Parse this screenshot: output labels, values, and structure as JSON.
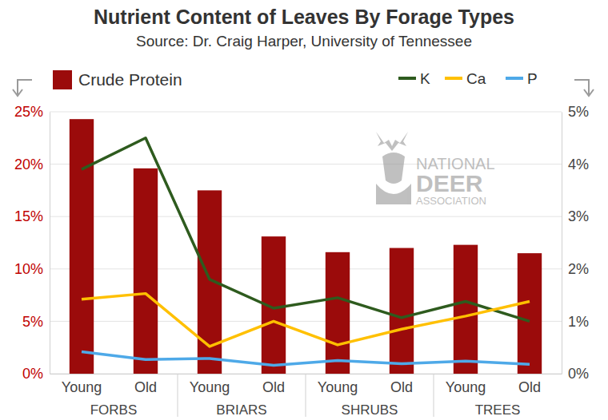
{
  "chart_data": {
    "type": "bar",
    "title": "Nutrient Content of Leaves By Forage Types",
    "subtitle": "Source: Dr. Craig Harper, University of Tennessee",
    "watermark": [
      "NATIONAL",
      "DEER",
      "ASSOCIATION"
    ],
    "categories": [
      "Young",
      "Old",
      "Young",
      "Old",
      "Young",
      "Old",
      "Young",
      "Old"
    ],
    "groups": [
      "FORBS",
      "BRIARS",
      "SHRUBS",
      "TREES"
    ],
    "ylim": [
      0,
      25
    ],
    "yticks": [
      {
        "value": 0,
        "label": "0%"
      },
      {
        "value": 5,
        "label": "5%"
      },
      {
        "value": 10,
        "label": "10%"
      },
      {
        "value": 15,
        "label": "15%"
      },
      {
        "value": 20,
        "label": "20%"
      },
      {
        "value": 25,
        "label": "25%"
      }
    ],
    "y2lim": [
      0,
      5
    ],
    "y2ticks": [
      {
        "value": 0,
        "label": "0%"
      },
      {
        "value": 1,
        "label": "1%"
      },
      {
        "value": 2,
        "label": "2%"
      },
      {
        "value": 3,
        "label": "3%"
      },
      {
        "value": 4,
        "label": "4%"
      },
      {
        "value": 5,
        "label": "5%"
      }
    ],
    "grid": true,
    "series": [
      {
        "name": "Crude Protein",
        "type": "bar",
        "color": "#9b0b0b",
        "values": [
          24.3,
          19.6,
          17.5,
          13.1,
          11.6,
          12.0,
          12.3,
          11.5
        ]
      },
      {
        "name": "K",
        "type": "line",
        "axis": "y2",
        "color": "#2e5b1e",
        "values": [
          3.9,
          4.5,
          1.8,
          1.25,
          1.45,
          1.07,
          1.38,
          1.0
        ]
      },
      {
        "name": "Ca",
        "type": "line",
        "axis": "y2",
        "color": "#ffc000",
        "values": [
          1.42,
          1.53,
          0.52,
          1.0,
          0.55,
          0.85,
          1.1,
          1.38
        ]
      },
      {
        "name": "P",
        "type": "line",
        "axis": "y2",
        "color": "#4ea9e8",
        "values": [
          0.42,
          0.27,
          0.29,
          0.16,
          0.25,
          0.19,
          0.24,
          0.18
        ]
      }
    ]
  }
}
